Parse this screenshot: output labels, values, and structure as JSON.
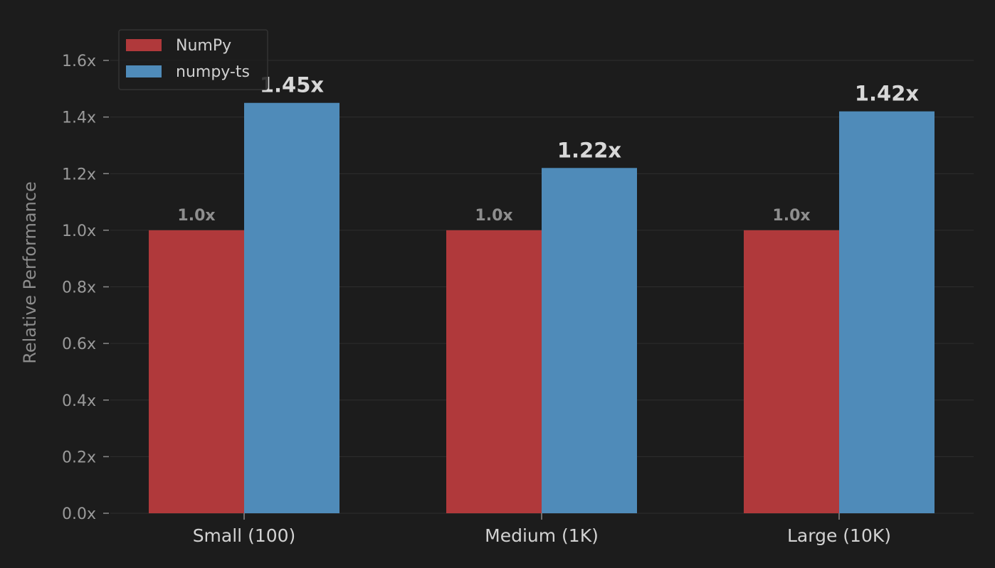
{
  "chart_data": {
    "type": "bar",
    "categories": [
      "Small (100)",
      "Medium (1K)",
      "Large (10K)"
    ],
    "series": [
      {
        "name": "NumPy",
        "values": [
          1.0,
          1.0,
          1.0
        ],
        "labels": [
          "1.0x",
          "1.0x",
          "1.0x"
        ],
        "color": "#b0393b"
      },
      {
        "name": "numpy-ts",
        "values": [
          1.45,
          1.22,
          1.42
        ],
        "labels": [
          "1.45x",
          "1.22x",
          "1.42x"
        ],
        "color": "#4f8bb9"
      }
    ],
    "title": "",
    "xlabel": "",
    "ylabel": "Relative Performance",
    "ylim": [
      0,
      1.6
    ],
    "yticks": [
      {
        "value": 0.0,
        "label": "0.0x"
      },
      {
        "value": 0.2,
        "label": "0.2x"
      },
      {
        "value": 0.4,
        "label": "0.4x"
      },
      {
        "value": 0.6,
        "label": "0.6x"
      },
      {
        "value": 0.8,
        "label": "0.8x"
      },
      {
        "value": 1.0,
        "label": "1.0x"
      },
      {
        "value": 1.2,
        "label": "1.2x"
      },
      {
        "value": 1.4,
        "label": "1.4x"
      },
      {
        "value": 1.6,
        "label": "1.6x"
      }
    ],
    "grid": true,
    "legend": "top-left",
    "colors": {
      "background": "#1c1c1c",
      "grid": "#2e2e2e",
      "axis": "#8a8a8a"
    }
  }
}
